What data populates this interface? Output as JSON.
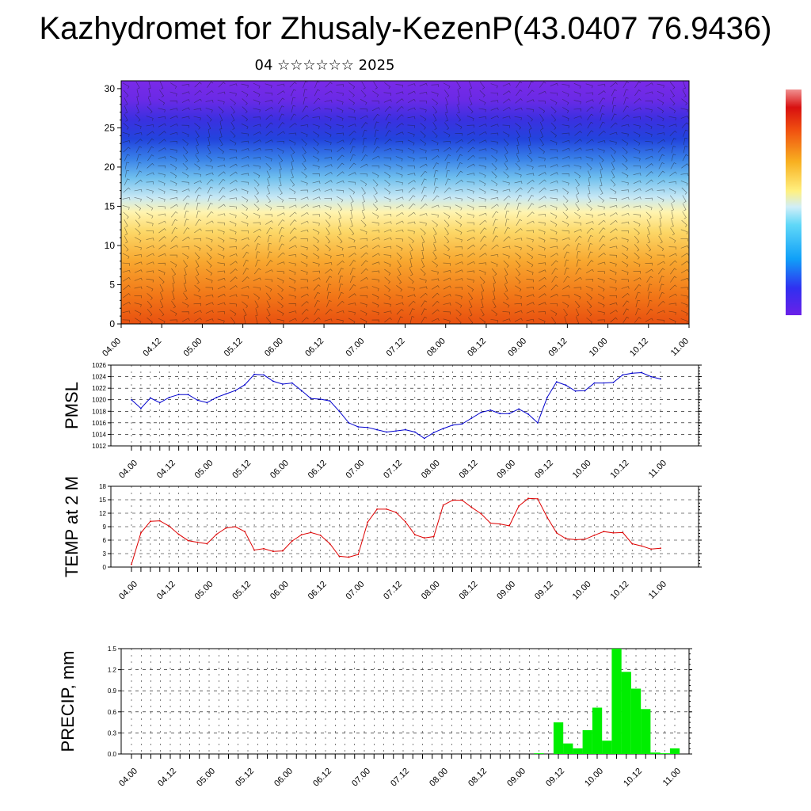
{
  "title": "Kazhydromet for Zhusaly-KezenP(43.0407 76.9436)",
  "subtitle": "04 ☆☆☆☆☆☆ 2025",
  "time_labels": [
    "04.00",
    "04.12",
    "05.00",
    "05.12",
    "06.00",
    "06.12",
    "07.00",
    "07.12",
    "08.00",
    "08.12",
    "09.00",
    "09.12",
    "10.00",
    "10.12",
    "11.00"
  ],
  "chart_data": [
    {
      "type": "heatmap",
      "title": "",
      "xlabel": "",
      "ylabel": "",
      "x_categories": [
        "04.00",
        "04.12",
        "05.00",
        "05.12",
        "06.00",
        "06.12",
        "07.00",
        "07.12",
        "08.00",
        "08.12",
        "09.00",
        "09.12",
        "10.00",
        "10.12",
        "11.00"
      ],
      "y_ticks": [
        0,
        5,
        10,
        15,
        20,
        25,
        30
      ],
      "ylim": [
        0,
        31
      ],
      "colorbar": "purple-blue-cyan-yellow-orange-red",
      "overlay": "wind barbs"
    },
    {
      "type": "line",
      "ylabel": "PMSL",
      "ylim": [
        1012,
        1026
      ],
      "y_ticks": [
        1012,
        1014,
        1016,
        1018,
        1020,
        1022,
        1024,
        1026
      ],
      "color": "#0000cc",
      "values": [
        1020,
        1018.5,
        1020.3,
        1019.5,
        1020.4,
        1020.9,
        1020.9,
        1019.9,
        1019.5,
        1020.4,
        1021.0,
        1021.6,
        1022.6,
        1024.4,
        1024.3,
        1023.2,
        1022.7,
        1022.9,
        1021.6,
        1020.2,
        1020.1,
        1019.8,
        1018.0,
        1016.0,
        1015.3,
        1015.2,
        1014.8,
        1014.4,
        1014.6,
        1014.8,
        1014.4,
        1013.3,
        1014.3,
        1015.0,
        1015.6,
        1015.8,
        1016.8,
        1017.8,
        1018.2,
        1017.6,
        1017.6,
        1018.4,
        1017.5,
        1016.0,
        1020.4,
        1023.1,
        1022.5,
        1021.5,
        1021.6,
        1022.9,
        1022.9,
        1023.0,
        1024.3,
        1024.6,
        1024.7,
        1024.0,
        1023.6
      ]
    },
    {
      "type": "line",
      "ylabel": "TEMP at 2 M",
      "ylim": [
        0,
        18
      ],
      "y_ticks": [
        0,
        3,
        6,
        9,
        12,
        15,
        18
      ],
      "color": "#dd0000",
      "values": [
        0.6,
        7.6,
        10.2,
        10.3,
        9.1,
        7.3,
        5.9,
        5.5,
        5.2,
        7.3,
        8.7,
        9.0,
        7.9,
        3.8,
        4.1,
        3.5,
        3.6,
        5.8,
        7.2,
        7.7,
        7.1,
        5.2,
        2.4,
        2.2,
        2.8,
        10.0,
        12.9,
        12.9,
        12.2,
        10.1,
        7.2,
        6.5,
        6.8,
        13.8,
        14.9,
        14.9,
        13.3,
        11.9,
        9.8,
        9.6,
        9.2,
        13.6,
        15.3,
        15.2,
        11.1,
        7.6,
        6.3,
        6.1,
        6.2,
        7.1,
        7.9,
        7.6,
        7.7,
        5.2,
        4.7,
        4.0,
        4.2
      ]
    },
    {
      "type": "bar",
      "ylabel": "PRECIP, mm",
      "ylim": [
        0,
        1.5
      ],
      "y_ticks": [
        0.0,
        0.3,
        0.6,
        0.9,
        1.2,
        1.5
      ],
      "color": "#00ee00",
      "values": [
        0,
        0,
        0,
        0,
        0,
        0,
        0,
        0,
        0,
        0,
        0,
        0,
        0,
        0,
        0,
        0,
        0,
        0,
        0,
        0,
        0,
        0,
        0,
        0,
        0,
        0,
        0,
        0,
        0,
        0,
        0,
        0,
        0,
        0,
        0,
        0,
        0,
        0,
        0,
        0,
        0,
        0,
        0.01,
        0,
        0.45,
        0.15,
        0.08,
        0.34,
        0.66,
        0.19,
        1.5,
        1.17,
        0.93,
        0.64,
        0.02,
        0.01,
        0.08
      ]
    }
  ]
}
